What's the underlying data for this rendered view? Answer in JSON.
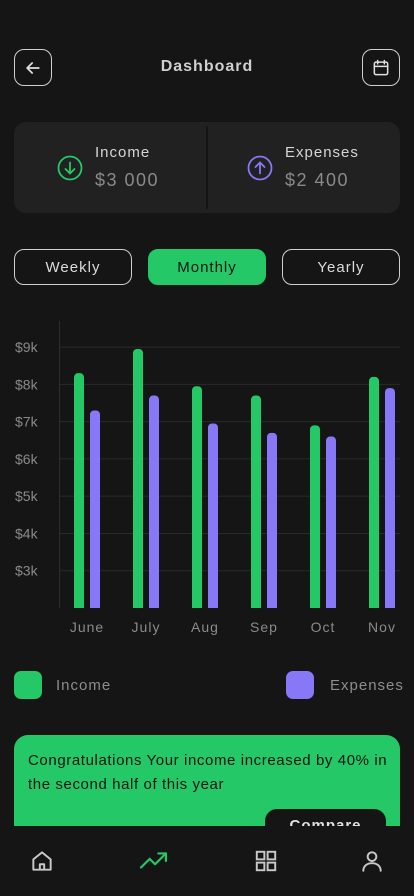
{
  "header": {
    "title": "Dashboard"
  },
  "summary": {
    "income": {
      "label": "Income",
      "value": "$3 000"
    },
    "expenses": {
      "label": "Expenses",
      "value": "$2 400"
    }
  },
  "segments": {
    "weekly": "Weekly",
    "monthly": "Monthly",
    "yearly": "Yearly",
    "selected": "Monthly"
  },
  "chart_data": {
    "type": "bar",
    "categories": [
      "June",
      "July",
      "Aug",
      "Sep",
      "Oct",
      "Nov"
    ],
    "series": [
      {
        "name": "Income",
        "color": "#25c866",
        "values": [
          8300,
          8950,
          7950,
          7700,
          6900,
          8200
        ]
      },
      {
        "name": "Expenses",
        "color": "#8678f7",
        "values": [
          7300,
          7700,
          6950,
          6700,
          6600,
          7900
        ]
      }
    ],
    "y_ticks": [
      {
        "value": 3000,
        "label": "$3k"
      },
      {
        "value": 4000,
        "label": "$4k"
      },
      {
        "value": 5000,
        "label": "$5k"
      },
      {
        "value": 6000,
        "label": "$6k"
      },
      {
        "value": 7000,
        "label": "$7k"
      },
      {
        "value": 8000,
        "label": "$8k"
      },
      {
        "value": 9000,
        "label": "$9k"
      }
    ],
    "ylim": [
      2000,
      9700
    ],
    "grid": true
  },
  "legend": {
    "income": {
      "label": "Income",
      "color": "#25c866"
    },
    "expenses": {
      "label": "Expenses",
      "color": "#8678f7"
    }
  },
  "promo": {
    "text": "Congratulations Your income increased by 40% in the second half of this year",
    "button": "Compare"
  },
  "colors": {
    "accent": "#25c866",
    "expense": "#8678f7",
    "background": "#151515",
    "card": "#212121"
  },
  "icons": {
    "back": "arrow-left-icon",
    "calendar": "calendar-icon",
    "income": "arrow-down-circle-icon",
    "expenses": "arrow-up-circle-icon",
    "tabs": [
      "home-icon",
      "trending-up-icon",
      "grid-icon",
      "user-icon"
    ]
  }
}
